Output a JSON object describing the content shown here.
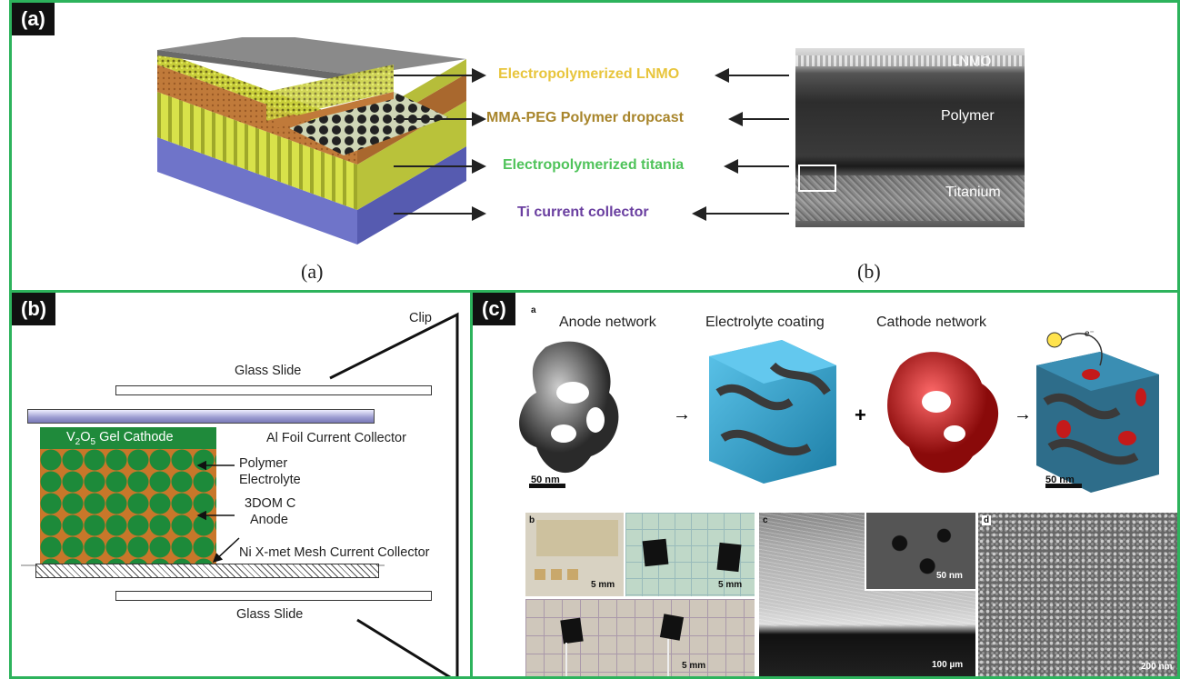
{
  "panel_a": {
    "tag": "(a)",
    "layers": [
      {
        "text": "Electropolymerized  LNMO",
        "color": "#e8c53c"
      },
      {
        "text": "MMA-PEG Polymer dropcast",
        "color": "#a8852b"
      },
      {
        "text": "Electropolymerized titania",
        "color": "#4fc35a"
      },
      {
        "text": "Ti current collector",
        "color": "#6a3fa0"
      }
    ],
    "sem_labels": {
      "top": "LNMO",
      "mid": "Polymer",
      "bottom": "Titanium"
    },
    "sub_a": "(a)",
    "sub_b": "(b)"
  },
  "panel_b": {
    "tag": "(b)",
    "clip": "Clip",
    "glass_top": "Glass Slide",
    "al_foil": "Al Foil Current Collector",
    "cathode_main": "V",
    "cathode_sub1": "2",
    "cathode_mid": "O",
    "cathode_sub2": "5",
    "cathode_rest": " Gel Cathode",
    "polymer_1": "Polymer",
    "polymer_2": "Electrolyte",
    "anode_1": "3DOM C",
    "anode_2": "Anode",
    "ni_mesh": "Ni X-met Mesh Current Collector",
    "glass_bottom": "Glass Slide"
  },
  "panel_c": {
    "tag": "(c)",
    "sub_a": "a",
    "titles": [
      "Anode network",
      "Electrolyte coating",
      "Cathode network"
    ],
    "scale_left": "50 nm",
    "scale_right": "50 nm",
    "sub_b": "b",
    "sub_c": "c",
    "sub_d": "d",
    "scale_5mm_1": "5 mm",
    "scale_5mm_2": "5 mm",
    "scale_5mm_3": "5 mm",
    "scale_50nm_inset": "50 nm",
    "scale_100um": "100 µm",
    "scale_200nm": "200 nm",
    "electron": "e⁻"
  }
}
